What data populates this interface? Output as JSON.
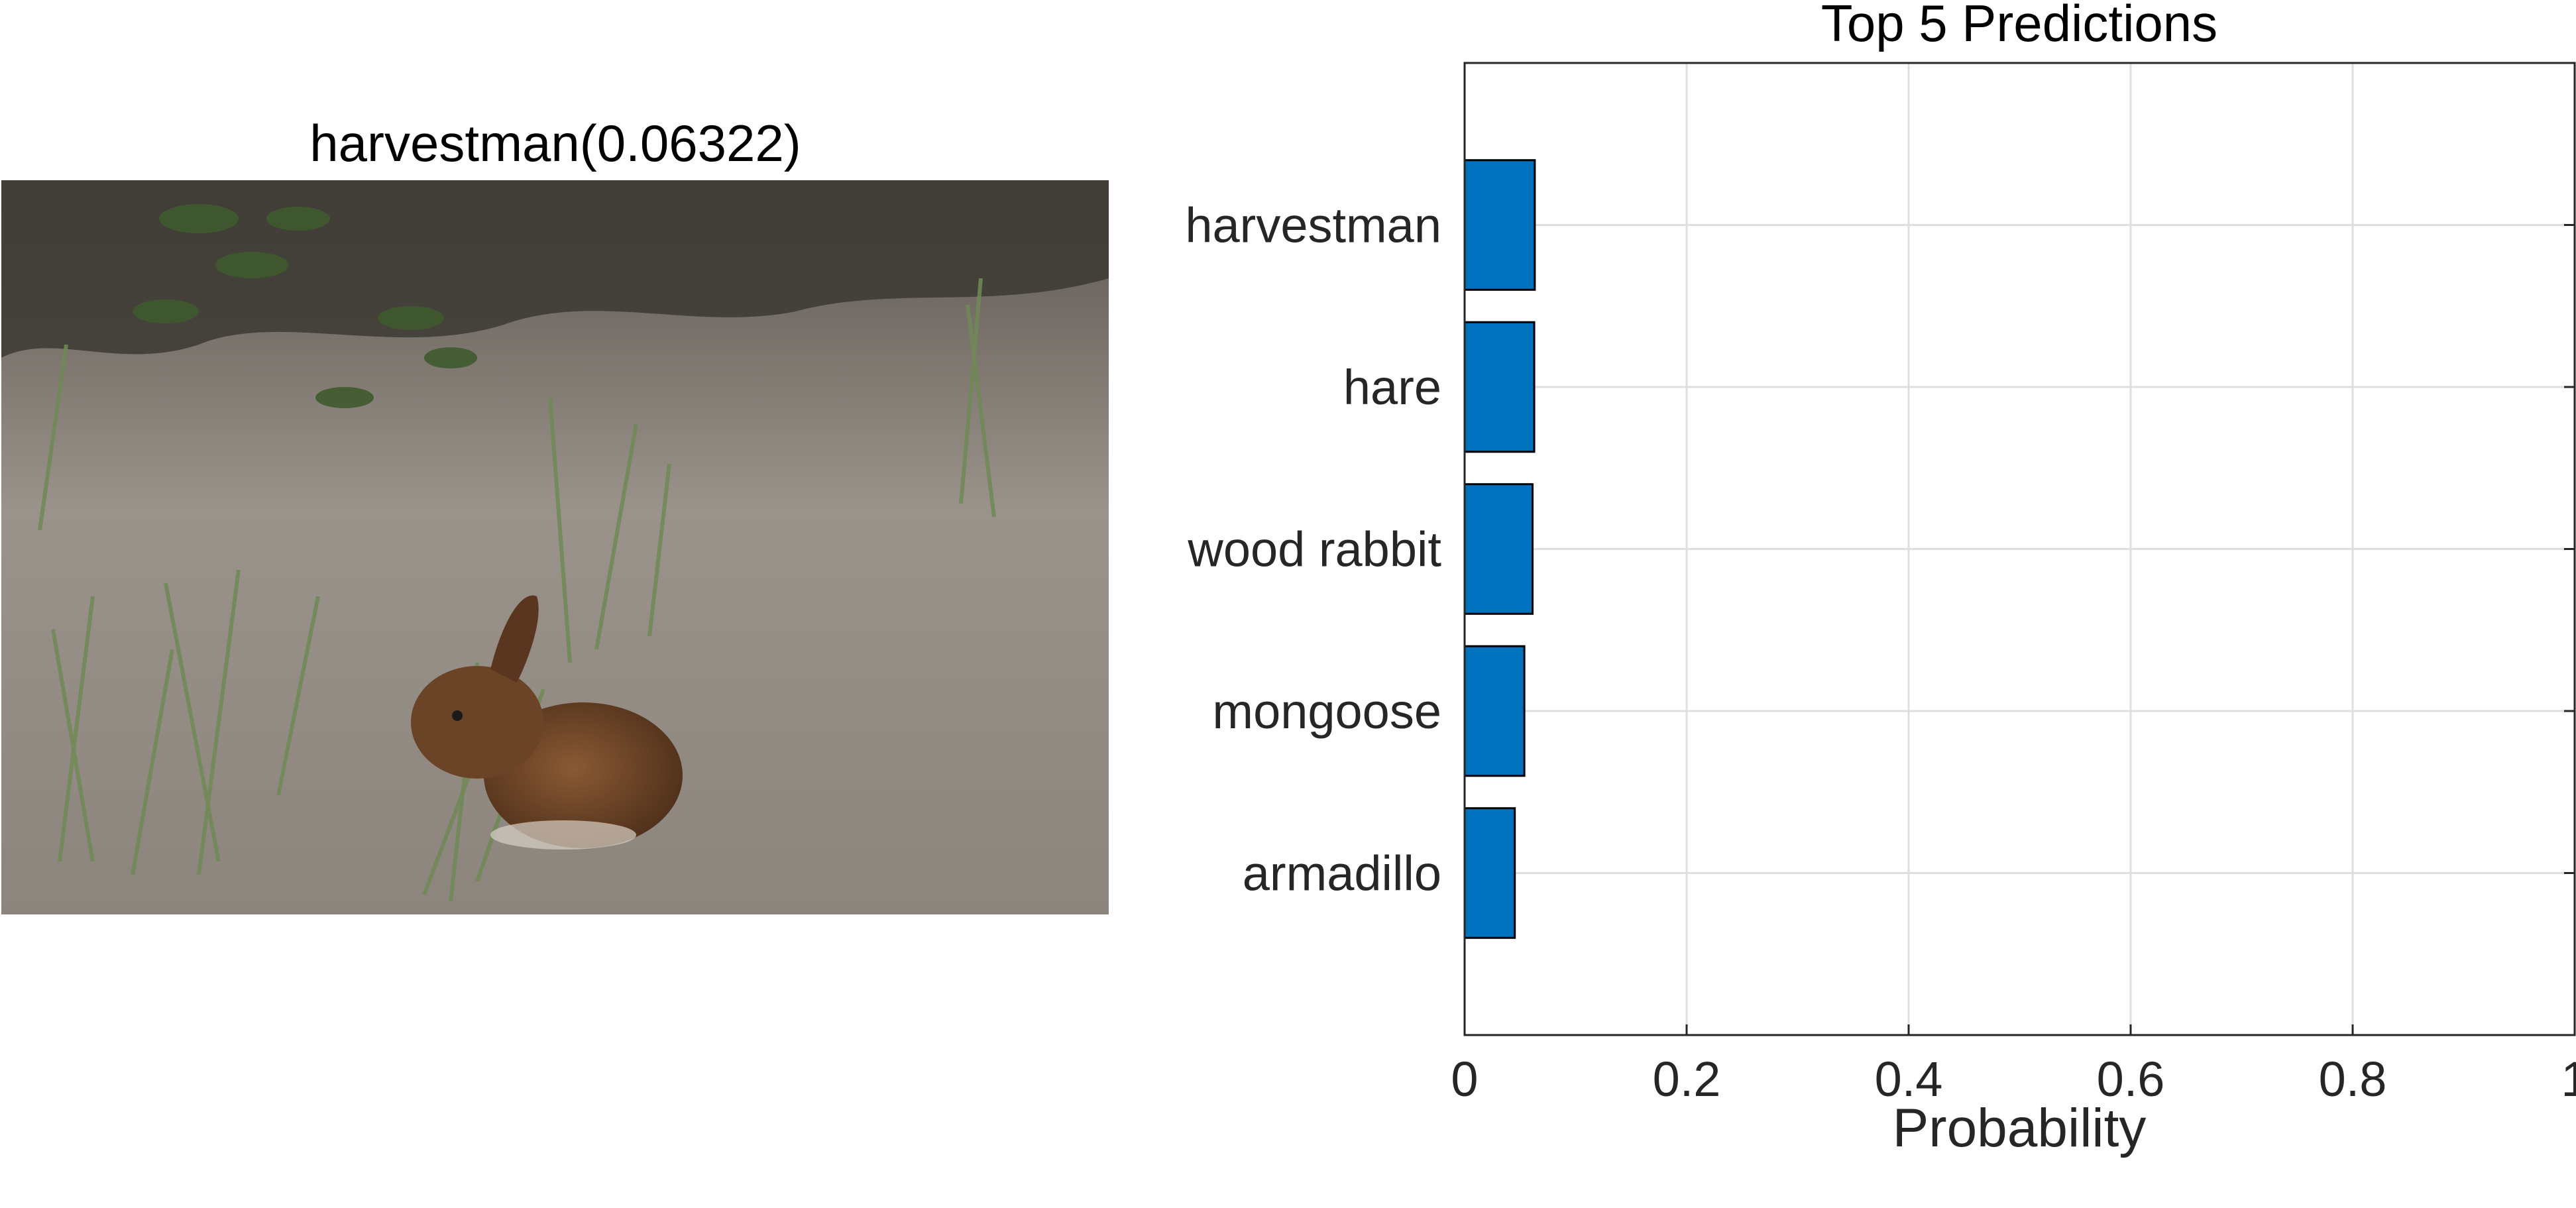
{
  "image_panel": {
    "title": "harvestman(0.06322)",
    "photo_subject": "rabbit sitting on sandy ground among grass and shrubs"
  },
  "colors": {
    "bar_fill": "#0072BD",
    "bar_edge": "#000000",
    "grid": "#DFDFDF",
    "axes": "#262626"
  },
  "chart_data": {
    "type": "bar",
    "orientation": "horizontal",
    "title": "Top 5 Predictions",
    "xlabel": "Probability",
    "ylabel": "",
    "categories": [
      "harvestman",
      "hare",
      "wood rabbit",
      "mongoose",
      "armadillo"
    ],
    "values": [
      0.0632,
      0.0627,
      0.0612,
      0.0538,
      0.0452
    ],
    "xlim": [
      0,
      1
    ],
    "xticks": [
      "0",
      "0.2",
      "0.4",
      "0.6",
      "0.8",
      "1"
    ],
    "grid": true,
    "legend": "none"
  }
}
